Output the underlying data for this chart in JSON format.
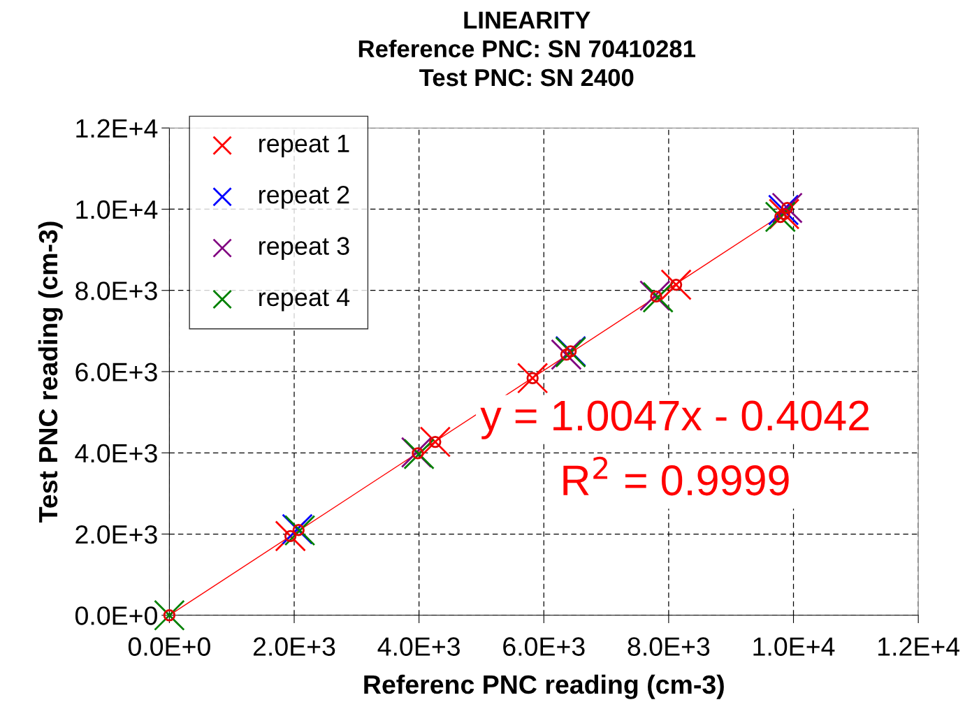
{
  "chart_data": {
    "type": "scatter",
    "title": "LINEARITY\nReference PNC: SN 70410281\nTest PNC: SN 2400",
    "xlabel": "Referenc PNC reading (cm-3)",
    "ylabel": "Test PNC reading (cm-3)",
    "xlim": [
      0,
      12000
    ],
    "ylim": [
      0,
      12000
    ],
    "xticks": [
      {
        "value": 0,
        "label": "0.0E+0"
      },
      {
        "value": 2000,
        "label": "2.0E+3"
      },
      {
        "value": 4000,
        "label": "4.0E+3"
      },
      {
        "value": 6000,
        "label": "6.0E+3"
      },
      {
        "value": 8000,
        "label": "8.0E+3"
      },
      {
        "value": 10000,
        "label": "1.0E+4"
      },
      {
        "value": 12000,
        "label": "1.2E+4"
      }
    ],
    "yticks": [
      {
        "value": 0,
        "label": "0.0E+0"
      },
      {
        "value": 2000,
        "label": "2.0E+3"
      },
      {
        "value": 4000,
        "label": "4.0E+3"
      },
      {
        "value": 6000,
        "label": "6.0E+3"
      },
      {
        "value": 8000,
        "label": "8.0E+3"
      },
      {
        "value": 10000,
        "label": "1.0E+4"
      },
      {
        "value": 12000,
        "label": "1.2E+4"
      }
    ],
    "grid": true,
    "legend": "top left",
    "marker": "cross",
    "series": [
      {
        "name": "repeat 1",
        "color": "#ff0000",
        "x": [
          null,
          1940,
          4260,
          5820,
          8120,
          9850
        ],
        "values": [
          null,
          1950,
          4270,
          5840,
          8140,
          9880
        ]
      },
      {
        "name": "repeat 2",
        "color": "#0000ff",
        "x": [
          null,
          2050,
          3980,
          6430,
          7800,
          9840
        ],
        "values": [
          null,
          2120,
          null,
          6500,
          null,
          9980
        ]
      },
      {
        "name": "repeat 3",
        "color": "#800080",
        "x": [
          null,
          null,
          3960,
          6360,
          7780,
          9900
        ],
        "values": [
          null,
          null,
          4010,
          6420,
          7870,
          10030
        ]
      },
      {
        "name": "repeat 4",
        "color": "#008000",
        "x": [
          0,
          2090,
          4000,
          6430,
          7830,
          9790
        ],
        "values": [
          0,
          2090,
          3970,
          6480,
          7830,
          9810
        ]
      },
      {
        "type": "scatter",
        "marker": "circle",
        "color": "#e00000",
        "x": [
          0,
          1940,
          2070,
          3980,
          4260,
          5820,
          6360,
          6430,
          7800,
          8120,
          9790,
          9850,
          9900
        ],
        "values": [
          0,
          1950,
          2100,
          3990,
          4270,
          5840,
          6420,
          6500,
          7850,
          8140,
          9810,
          9880,
          10030
        ]
      },
      {
        "type": "line",
        "color": "#ff0000",
        "x": [
          0,
          9900
        ],
        "values": [
          0,
          9950
        ]
      }
    ],
    "annotations": [
      "y = 1.0047x - 0.4042",
      "R$^{2}$ = 0.9999"
    ]
  }
}
